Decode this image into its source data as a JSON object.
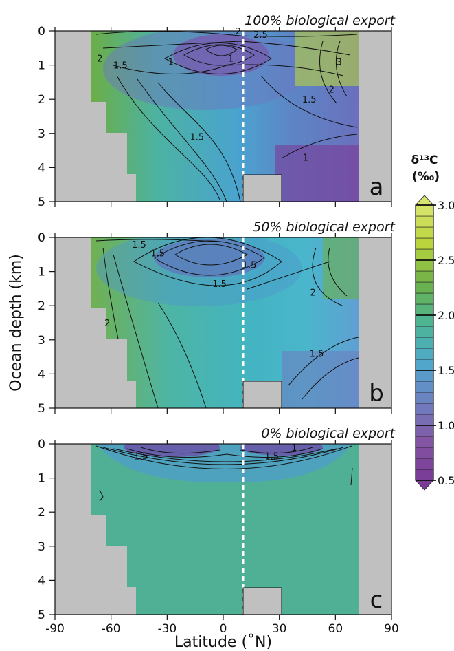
{
  "chart_data": [
    {
      "type": "heatmap",
      "panel_letter": "a",
      "title": "100% biological export",
      "xlim": [
        -90,
        90
      ],
      "ylim": [
        5,
        0
      ],
      "land_mask_color": "#c0c0c0",
      "ocean_lat_range": [
        -72,
        72
      ],
      "divider_latitude": 10,
      "contour_labels": [
        {
          "text": "2",
          "lat": -66,
          "depth": 0.9
        },
        {
          "text": "1.5",
          "lat": -55,
          "depth": 1.1
        },
        {
          "text": "1",
          "lat": -28,
          "depth": 1.0
        },
        {
          "text": "1",
          "lat": 4,
          "depth": 0.9
        },
        {
          "text": "1.5",
          "lat": -14,
          "depth": 3.2
        },
        {
          "text": "2",
          "lat": 8,
          "depth": 0.1
        },
        {
          "text": "2.5",
          "lat": 20,
          "depth": 0.2
        },
        {
          "text": "3",
          "lat": 62,
          "depth": 1.0
        },
        {
          "text": "2",
          "lat": 58,
          "depth": 1.8
        },
        {
          "text": "1.5",
          "lat": 46,
          "depth": 2.1
        },
        {
          "text": "1",
          "lat": 44,
          "depth": 3.8
        }
      ]
    },
    {
      "type": "heatmap",
      "panel_letter": "b",
      "title": "50% biological export",
      "xlim": [
        -90,
        90
      ],
      "ylim": [
        5,
        0
      ],
      "land_mask_color": "#c0c0c0",
      "ocean_lat_range": [
        -72,
        72
      ],
      "divider_latitude": 10,
      "contour_labels": [
        {
          "text": "1.5",
          "lat": -45,
          "depth": 0.3
        },
        {
          "text": "1.5",
          "lat": -35,
          "depth": 0.55
        },
        {
          "text": "1.5",
          "lat": -2,
          "depth": 1.45
        },
        {
          "text": "1.5",
          "lat": 14,
          "depth": 0.9
        },
        {
          "text": "2",
          "lat": -62,
          "depth": 2.6
        },
        {
          "text": "2",
          "lat": 48,
          "depth": 1.7
        },
        {
          "text": "1.5",
          "lat": 50,
          "depth": 3.5
        }
      ]
    },
    {
      "type": "heatmap",
      "panel_letter": "c",
      "title": "0% biological export",
      "xlim": [
        -90,
        90
      ],
      "ylim": [
        5,
        0
      ],
      "land_mask_color": "#c0c0c0",
      "ocean_lat_range": [
        -72,
        72
      ],
      "divider_latitude": 10,
      "contour_labels": [
        {
          "text": "1.5",
          "lat": -44,
          "depth": 0.45
        },
        {
          "text": "1.5",
          "lat": 26,
          "depth": 0.45
        },
        {
          "text": "1",
          "lat": 38,
          "depth": 0.2
        }
      ]
    }
  ],
  "axes": {
    "ylabel": "Ocean depth (km)",
    "xlabel": "Latitude (˚N)",
    "x_ticks": [
      -90,
      -60,
      -30,
      0,
      30,
      60,
      90
    ],
    "x_tick_labels": [
      "-90",
      "-60",
      "-30",
      "0",
      "30",
      "60",
      "90"
    ],
    "y_ticks": [
      0,
      1,
      2,
      3,
      4,
      5
    ],
    "y_tick_labels": [
      "0",
      "1",
      "2",
      "3",
      "4",
      "5"
    ]
  },
  "colorbar": {
    "title_symbol": "δ¹³C",
    "units": "(‰)",
    "min": 0.5,
    "max": 3.0,
    "step": 0.1,
    "ticks": [
      0.5,
      1.0,
      1.5,
      2.0,
      2.5,
      3.0
    ],
    "tick_labels": [
      "0.5",
      "1.0",
      "1.5",
      "2.0",
      "2.5",
      "3.0"
    ],
    "colors": [
      "#7a3a96",
      "#8456a3",
      "#6d7fc0",
      "#4fa8cc",
      "#4db594",
      "#6cb04a",
      "#b9d43c",
      "#d8e46e"
    ],
    "extend": "both"
  }
}
